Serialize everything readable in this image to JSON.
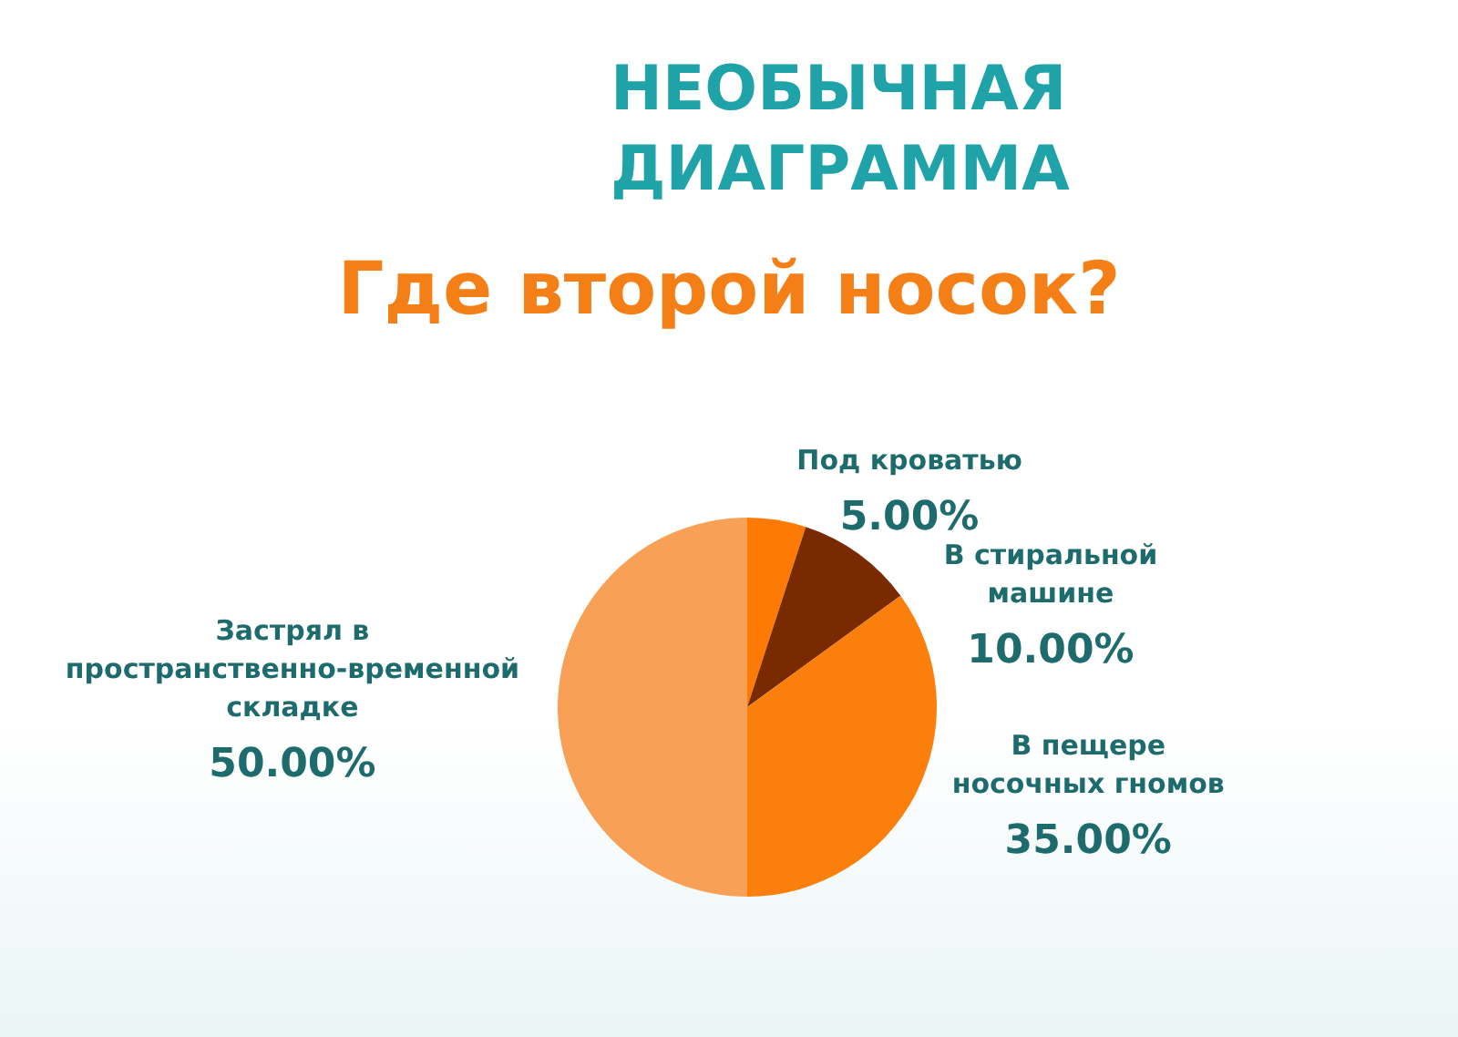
{
  "chart_data": {
    "type": "pie",
    "title": "Где второй носок?",
    "subtitle": "НЕОБЫЧНАЯ ДИАГРАММА",
    "categories": [
      "Под кроватью",
      "В стиральной машине",
      "В пещере носочных гномов",
      "Застрял в пространственно-временной складке"
    ],
    "values": [
      5,
      10,
      35,
      50
    ],
    "colors": [
      "#fd7a05",
      "#7a2a00",
      "#fb7f0c",
      "#f9a057"
    ],
    "value_labels": [
      "5.00%",
      "10.00%",
      "35.00%",
      "50.00%"
    ]
  }
}
